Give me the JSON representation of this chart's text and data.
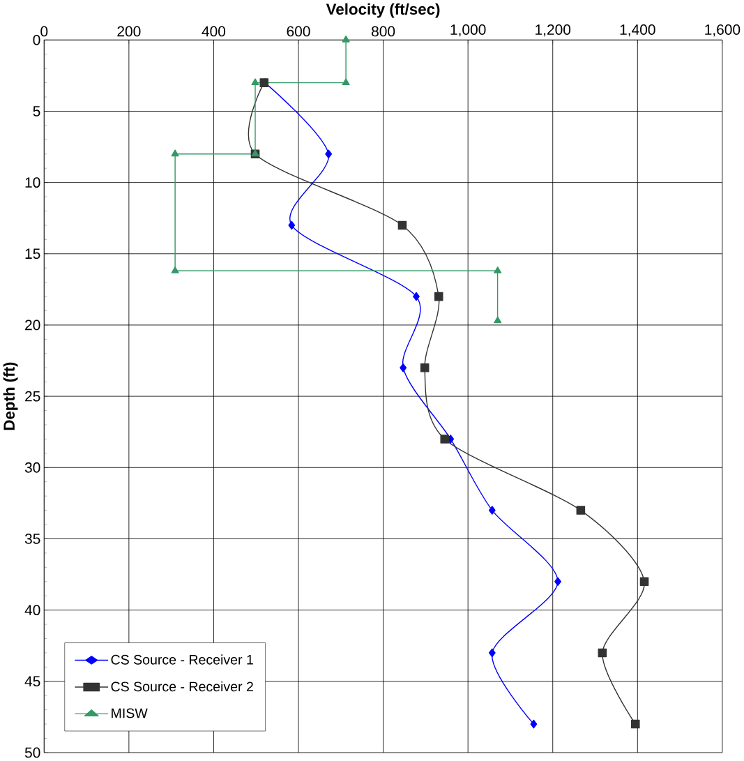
{
  "chart_data": {
    "type": "line",
    "xlabel": "Velocity (ft/sec)",
    "ylabel": "Depth (ft)",
    "xlim": [
      0,
      1600
    ],
    "xticks": [
      0,
      200,
      400,
      600,
      800,
      {
        "value": 1000,
        "label": "1,000"
      },
      {
        "value": 1200,
        "label": "1,200"
      },
      {
        "value": 1400,
        "label": "1,400"
      },
      {
        "value": 1600,
        "label": "1,600"
      }
    ],
    "ylim": [
      50,
      0
    ],
    "yticks": [
      0,
      5,
      10,
      15,
      20,
      25,
      30,
      35,
      40,
      45,
      50
    ],
    "grid": true,
    "legend": "bottom left",
    "line_style": "solid",
    "series": [
      {
        "name": "CS Source - Receiver 1",
        "color": "#0000ff",
        "marker": "diamond",
        "x": [
          521,
          671,
          584,
          878,
          847,
          959,
          1057,
          1212,
          1057,
          1155
        ],
        "values": [
          3,
          8,
          13,
          18,
          23,
          28,
          33,
          38,
          43,
          48
        ]
      },
      {
        "name": "CS Source - Receiver 2",
        "color": "#333333",
        "marker": "square",
        "x": [
          519,
          498,
          845,
          931,
          898,
          945,
          1266,
          1416,
          1317,
          1395
        ],
        "values": [
          3,
          8,
          13,
          18,
          23,
          28,
          33,
          38,
          43,
          48
        ]
      },
      {
        "name": "MISW",
        "color": "#339966",
        "marker": "triangle",
        "type": "line",
        "x": [
          712,
          712,
          498,
          498,
          309,
          309,
          1070,
          1070
        ],
        "values": [
          0,
          3,
          3,
          8,
          8,
          16.2,
          16.2,
          19.7
        ]
      }
    ]
  }
}
